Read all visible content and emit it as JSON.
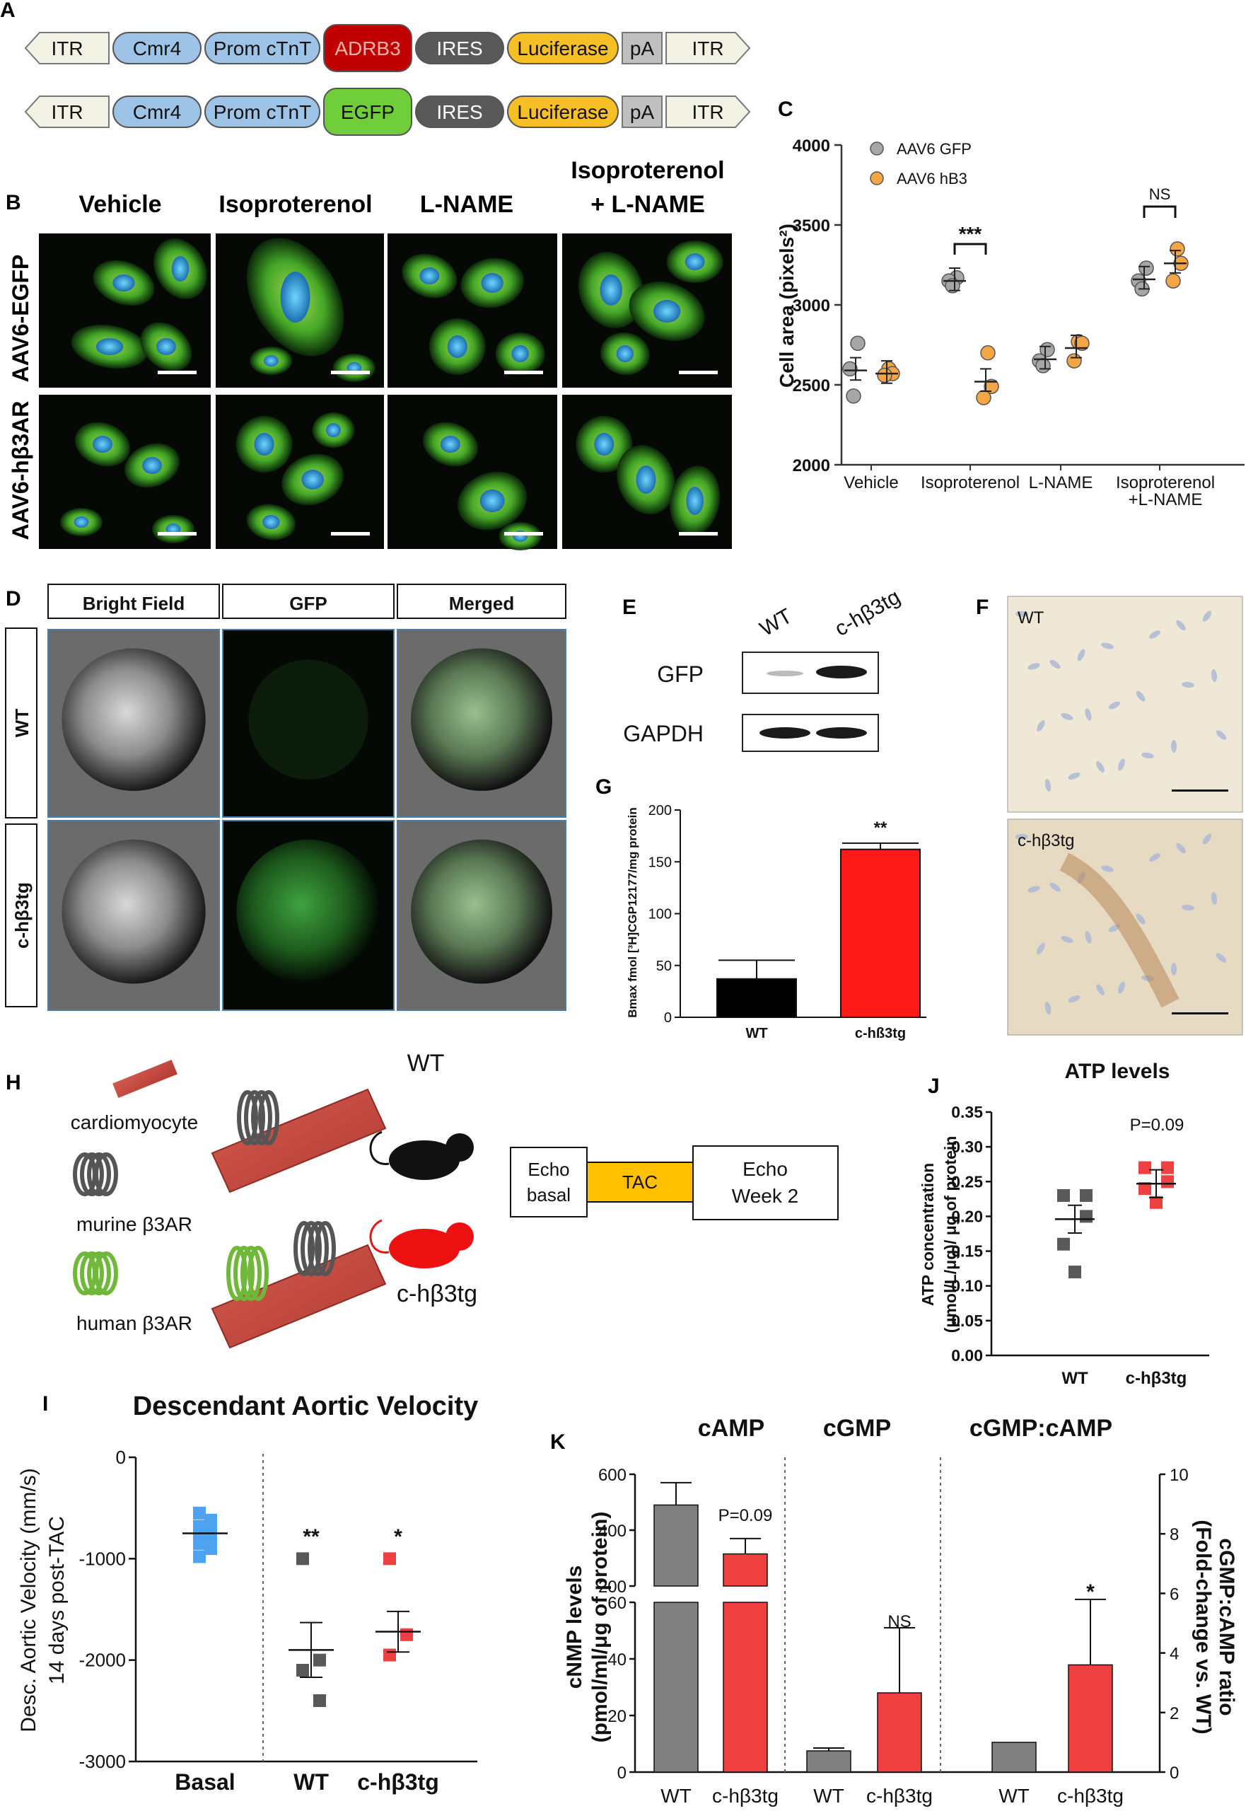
{
  "panels": {
    "A": "A",
    "B": "B",
    "C": "C",
    "D": "D",
    "E": "E",
    "F": "F",
    "G": "G",
    "H": "H",
    "I": "I",
    "J": "J",
    "K": "K"
  },
  "construct_a": {
    "row1": [
      "ITR",
      "Cmr4",
      "Prom cTnT",
      "ADRB3",
      "IRES",
      "Luciferase",
      "pA",
      "ITR"
    ],
    "row2": [
      "ITR",
      "Cmr4",
      "Prom cTnT",
      "EGFP",
      "IRES",
      "Luciferase",
      "pA",
      "ITR"
    ],
    "colors": {
      "itr": "#f2f2e4",
      "cmr4": "#9dc3e6",
      "prom": "#9dc3e6",
      "adrb3": "#c00000",
      "egfp": "#70ce3a",
      "ires": "#595959",
      "luc": "#f6bf26",
      "pa": "#bfbfbf"
    }
  },
  "panel_b": {
    "col_headers": [
      "Vehicle",
      "Isoproterenol",
      "L-NAME",
      "Isoproterenol",
      "+ L-NAME"
    ],
    "row_labels": [
      "AAV6-EGFP",
      "AAV6-hβ3AR"
    ]
  },
  "panel_c": {
    "chart_data": {
      "type": "scatter",
      "ylabel": "Cell area (pixels²)",
      "ylim": [
        2000,
        4000
      ],
      "yticks": [
        "2000",
        "2500",
        "3000",
        "3500",
        "4000"
      ],
      "categories": [
        "Vehicle",
        "Isoproterenol",
        "L-NAME",
        "Isoproterenol",
        "+L-NAME"
      ],
      "legend": [
        "AAV6 GFP",
        "AAV6 hB3"
      ],
      "colors": [
        "#a6a6a6",
        "#f4a545"
      ],
      "series": [
        {
          "name": "AAV6 GFP",
          "points": [
            [
              2760,
              2600,
              2430
            ],
            [
              3170,
              3150,
              3120
            ],
            [
              2720,
              2650,
              2620
            ],
            [
              3230,
              3150,
              3100
            ]
          ],
          "means": [
            2590,
            3150,
            2660,
            3160
          ]
        },
        {
          "name": "AAV6 hB3",
          "points": [
            [
              2600,
              2570,
              2560
            ],
            [
              2700,
              2490,
              2420
            ],
            [
              2770,
              2760,
              2650
            ],
            [
              3350,
              3260,
              3150
            ]
          ],
          "means": [
            2570,
            2520,
            2730,
            3260
          ]
        }
      ],
      "annotations": [
        "***",
        "NS"
      ]
    }
  },
  "panel_d": {
    "headers": [
      "Bright Field",
      "GFP",
      "Merged"
    ],
    "row_labels": [
      "WT",
      "c-hβ3tg"
    ]
  },
  "panel_e": {
    "cols": [
      "WT",
      "c-hβ3tg"
    ],
    "rows": [
      "GFP",
      "GAPDH"
    ]
  },
  "panel_f": {
    "labels": [
      "WT",
      "c-hβ3tg"
    ]
  },
  "panel_g": {
    "chart_data": {
      "type": "bar",
      "ylabel": "Bmax fmol [³H]CGP12177/mg protein",
      "ylim": [
        0,
        200
      ],
      "yticks": [
        "0",
        "50",
        "100",
        "150",
        "200"
      ],
      "categories": [
        "WT",
        "c-hß3tg"
      ],
      "values": [
        37,
        162
      ],
      "errors": [
        18,
        6
      ],
      "colors": [
        "#000000",
        "#ff1a1a"
      ],
      "annotation": "**"
    }
  },
  "panel_h": {
    "legend_labels": [
      "cardiomyocyte",
      "murine β3AR",
      "human β3AR"
    ],
    "mouse_labels": [
      "WT",
      "c-hβ3tg"
    ],
    "timeline": [
      "Echo",
      "basal",
      "TAC",
      "Echo",
      "Week 2"
    ]
  },
  "panel_j": {
    "chart_data": {
      "type": "scatter",
      "title": "ATP levels",
      "ylabel_lines": [
        "ATP concentration",
        "(μmol/L/μg)/ μg of protein"
      ],
      "ylim": [
        0,
        0.35
      ],
      "yticks": [
        "0.00",
        "0.05",
        "0.10",
        "0.15",
        "0.20",
        "0.25",
        "0.30",
        "0.35"
      ],
      "categories": [
        "WT",
        "c-hβ3tg"
      ],
      "colors": [
        "#595959",
        "#ef4040"
      ],
      "points": [
        [
          0.23,
          0.23,
          0.2,
          0.16,
          0.12
        ],
        [
          0.27,
          0.27,
          0.25,
          0.24,
          0.22
        ]
      ],
      "means": [
        0.196,
        0.247
      ],
      "annotation": "P=0.09"
    }
  },
  "panel_i": {
    "chart_data": {
      "type": "scatter",
      "title": "Descendant Aortic Velocity",
      "ylabel_lines": [
        "Desc. Aortic Velocity (mm/s)",
        "14 days post-TAC"
      ],
      "ylim": [
        -3000,
        0
      ],
      "yticks": [
        "0",
        "-1000",
        "-2000",
        "-3000"
      ],
      "categories": [
        "Basal",
        "WT",
        "c-hβ3tg"
      ],
      "colors": [
        "#4da3f0",
        "#595959",
        "#ef4040"
      ],
      "points": [
        [
          -550,
          -620,
          -680,
          -720,
          -760,
          -800,
          -850,
          -900,
          -980
        ],
        [
          -1000,
          -2000,
          -2100,
          -2400
        ],
        [
          -1000,
          -1750,
          -1950
        ]
      ],
      "means": [
        -750,
        -1900,
        -1720
      ],
      "annotations": [
        "",
        "**",
        "*"
      ]
    }
  },
  "panel_k": {
    "chart_data": {
      "type": "bar",
      "titles": [
        "cAMP",
        "cGMP",
        "cGMP:cAMP"
      ],
      "ylabel_left_lines": [
        "cNMP levels",
        "(pmol/ml/μg of protein)"
      ],
      "ylabel_right_lines": [
        "cGMP:cAMP ratio",
        "(Fold-change vs. WT)"
      ],
      "upper_yticks": [
        "200",
        "400",
        "600"
      ],
      "lower_yticks": [
        "0",
        "20",
        "40",
        "60"
      ],
      "right_yticks": [
        "0",
        "2",
        "4",
        "6",
        "8",
        "10"
      ],
      "categories": [
        "WT",
        "c-hβ3tg"
      ],
      "colors": [
        "#808080",
        "#ef4040"
      ],
      "camp": [
        490,
        315
      ],
      "camp_err": [
        80,
        55
      ],
      "cgmp": [
        7.5,
        28
      ],
      "cgmp_err": [
        1,
        23
      ],
      "ratio": [
        1,
        3.6
      ],
      "ratio_err": [
        0,
        2.2
      ],
      "annotations": [
        "P=0.09",
        "NS",
        "*"
      ]
    }
  }
}
